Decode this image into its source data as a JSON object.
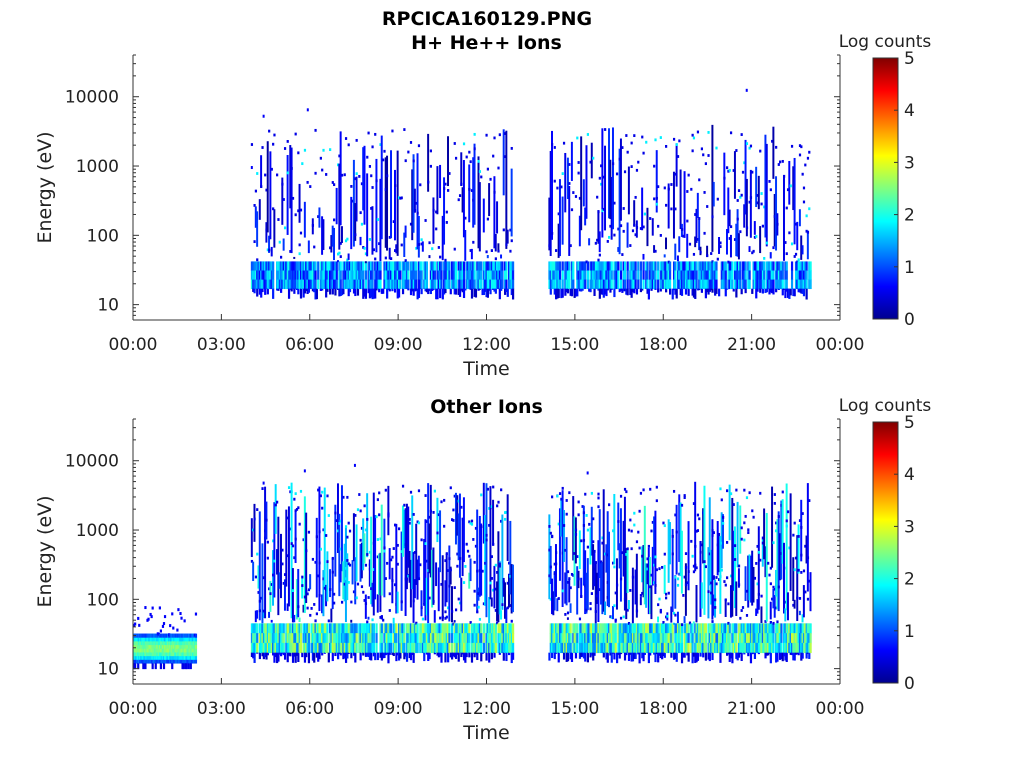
{
  "figure_title": "RPCICA160129.PNG",
  "chart_data": [
    {
      "type": "heatmap",
      "title": "H+ He++ Ions",
      "xlabel": "Time",
      "ylabel": "Energy (eV)",
      "x_ticks": [
        "00:00",
        "03:00",
        "06:00",
        "09:00",
        "12:00",
        "15:00",
        "18:00",
        "21:00",
        "00:00"
      ],
      "x_tick_hours": [
        0,
        3,
        6,
        9,
        12,
        15,
        18,
        21,
        24
      ],
      "y_ticks": [
        "10",
        "100",
        "1000",
        "10000"
      ],
      "y_tick_values": [
        10,
        100,
        1000,
        10000
      ],
      "y_scale": "log",
      "ylim": [
        6,
        40000
      ],
      "xlim_hours": [
        0,
        24
      ],
      "colorbar": {
        "label": "Log counts",
        "ticks": [
          "0",
          "1",
          "2",
          "3",
          "4",
          "5"
        ],
        "range": [
          0,
          5
        ]
      },
      "activity_intervals_hours": [
        [
          4.0,
          12.9
        ],
        [
          14.1,
          23.0
        ]
      ],
      "band": {
        "energy_low": 17,
        "energy_high": 42,
        "typical_log_counts": 1.3,
        "peak_log_counts": 2.1
      },
      "scatter_energy_range": [
        15,
        4000
      ],
      "stray_points": [
        {
          "hour": 4.4,
          "energy": 5500
        },
        {
          "hour": 5.9,
          "energy": 6800
        },
        {
          "hour": 20.8,
          "energy": 13000
        },
        {
          "hour": 4.0,
          "energy": 1000
        }
      ]
    },
    {
      "type": "heatmap",
      "title": "Other Ions",
      "xlabel": "Time",
      "ylabel": "Energy (eV)",
      "x_ticks": [
        "00:00",
        "03:00",
        "06:00",
        "09:00",
        "12:00",
        "15:00",
        "18:00",
        "21:00",
        "00:00"
      ],
      "x_tick_hours": [
        0,
        3,
        6,
        9,
        12,
        15,
        18,
        21,
        24
      ],
      "y_ticks": [
        "10",
        "100",
        "1000",
        "10000"
      ],
      "y_tick_values": [
        10,
        100,
        1000,
        10000
      ],
      "y_scale": "log",
      "ylim": [
        6,
        40000
      ],
      "xlim_hours": [
        0,
        24
      ],
      "colorbar": {
        "label": "Log counts",
        "ticks": [
          "0",
          "1",
          "2",
          "3",
          "4",
          "5"
        ],
        "range": [
          0,
          5
        ]
      },
      "early_patch": {
        "hours": [
          0.0,
          2.1
        ],
        "energy_low": 12,
        "energy_high": 32,
        "peak_log_counts": 2.7,
        "upper_scatter_energy": 80
      },
      "activity_intervals_hours": [
        [
          4.0,
          12.9
        ],
        [
          14.1,
          23.0
        ]
      ],
      "band": {
        "energy_low": 17,
        "energy_high": 45,
        "typical_log_counts": 2.0,
        "peak_log_counts": 3.0
      },
      "scatter_energy_range": [
        10,
        5000
      ],
      "stray_points": [
        {
          "hour": 7.5,
          "energy": 9000
        },
        {
          "hour": 5.8,
          "energy": 7500
        },
        {
          "hour": 15.4,
          "energy": 7000
        },
        {
          "hour": 4.4,
          "energy": 5000
        }
      ]
    }
  ]
}
